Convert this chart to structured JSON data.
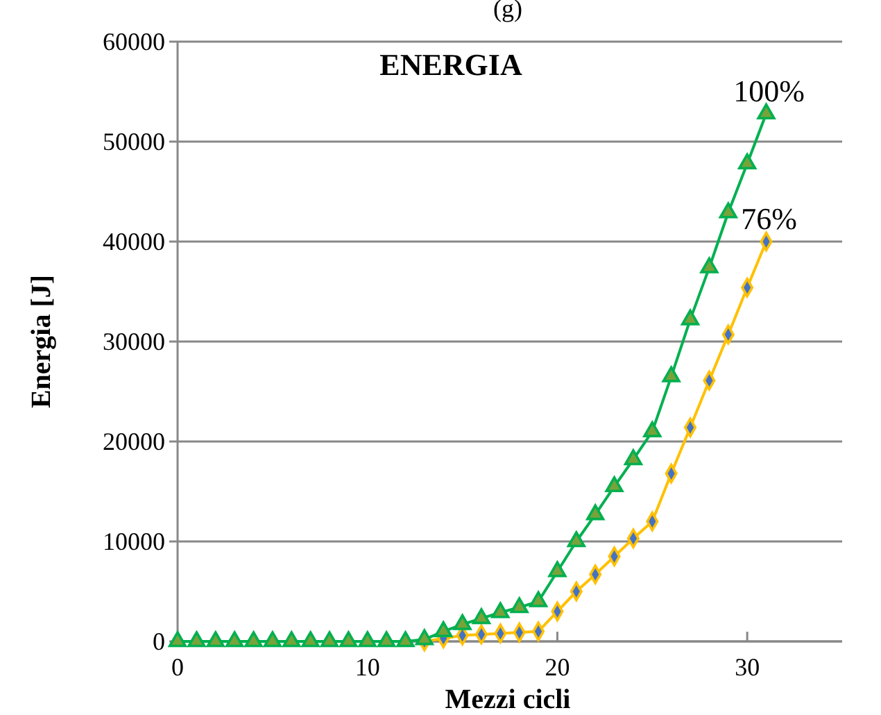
{
  "chart_data": {
    "type": "line",
    "title": "ENERGIA",
    "xlabel": "Mezzi cicli",
    "ylabel": "Energia [J]",
    "x": [
      0,
      1,
      2,
      3,
      4,
      5,
      6,
      7,
      8,
      9,
      10,
      11,
      12,
      13,
      14,
      15,
      16,
      17,
      18,
      19,
      20,
      21,
      22,
      23,
      24,
      25,
      26,
      27,
      28,
      29,
      30,
      31
    ],
    "series": [
      {
        "color": "#ffc000",
        "marker": "diamond",
        "values": [
          null,
          null,
          null,
          null,
          null,
          null,
          null,
          null,
          null,
          null,
          null,
          null,
          null,
          0,
          300,
          600,
          700,
          800,
          900,
          1000,
          3000,
          5000,
          6700,
          8500,
          10300,
          12000,
          16800,
          21400,
          26100,
          30700,
          35400,
          40000
        ]
      },
      {
        "color": "#00b050",
        "marker": "triangle",
        "values": [
          0,
          0,
          0,
          0,
          0,
          0,
          0,
          0,
          0,
          0,
          0,
          0,
          0,
          200,
          1000,
          1700,
          2300,
          2900,
          3400,
          4000,
          7000,
          10000,
          12700,
          15500,
          18200,
          21000,
          26500,
          32200,
          37400,
          42900,
          47800,
          52800
        ]
      }
    ],
    "xlim": [
      0,
      35
    ],
    "xticks": [
      0,
      10,
      20,
      30
    ],
    "ylim": [
      0,
      60000
    ],
    "yticks": [
      0,
      10000,
      20000,
      30000,
      40000,
      50000,
      60000
    ],
    "grid": "y",
    "line_style": "solid",
    "annotations": [
      "(g)",
      {
        "text": "100%",
        "x": 31,
        "y": 52800
      },
      {
        "text": "76%",
        "x": 31,
        "y": 40000
      }
    ]
  }
}
